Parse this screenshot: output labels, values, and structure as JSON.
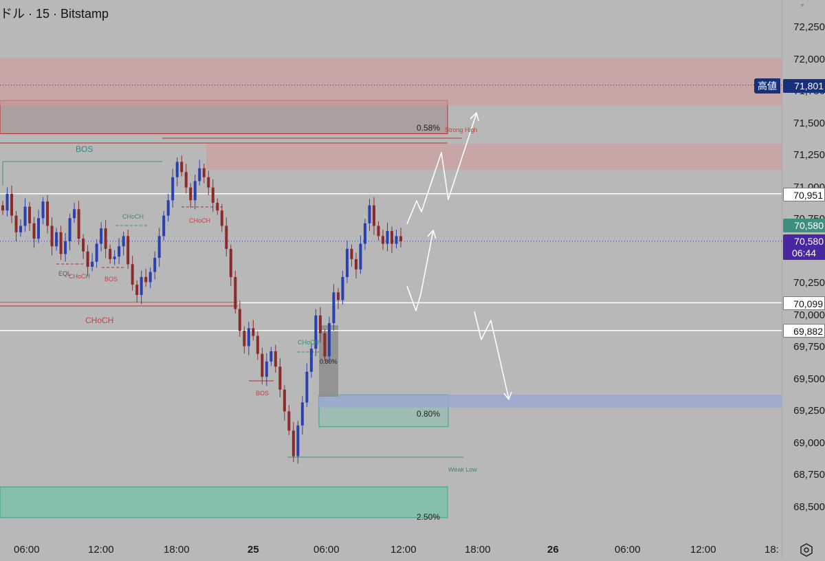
{
  "header": {
    "title": "ドル · 15 · Bitstamp"
  },
  "price_axis": {
    "ticks": [
      "72,250",
      "72,000",
      "71,750",
      "71,500",
      "71,250",
      "71,000",
      "70,750",
      "70,250",
      "70,000",
      "69,750",
      "69,500",
      "69,250",
      "69,000",
      "68,750",
      "68,500"
    ],
    "tick_values": [
      72250,
      72000,
      71750,
      71500,
      71250,
      71000,
      70750,
      70250,
      70000,
      69750,
      69500,
      69250,
      69000,
      68750,
      68500
    ]
  },
  "time_axis": {
    "ticks": [
      "06:00",
      "12:00",
      "18:00",
      "25",
      "06:00",
      "12:00",
      "18:00",
      "26",
      "06:00",
      "12:00",
      "18:"
    ],
    "bold": [
      false,
      false,
      false,
      true,
      false,
      false,
      false,
      true,
      false,
      false,
      false
    ]
  },
  "price_tags": {
    "high_label": "高値",
    "high_value": "71,801",
    "level_1": "70,951",
    "current_green": "70,580",
    "current_purple": "70,580",
    "countdown": "06:44",
    "level_2": "70,099",
    "level_3": "69,882"
  },
  "zones": {
    "top_pct": "0.58%",
    "mid_pct": "0.80%",
    "bottom_pct": "2.50%",
    "gray_pct": "0.80%"
  },
  "annotations": {
    "bos_top": "BOS",
    "choch_big": "CHoCH",
    "choch_1": "CHoCH",
    "choch_2": "CHoCH",
    "choch_3": "CHoCH",
    "choch_4": "CHoCH",
    "bos_1": "BOS",
    "bos_2": "BOS",
    "eql": "EQL",
    "strong_high": "Strong High",
    "weak_low": "Weak Low"
  },
  "colors": {
    "background": "#b8b8b8",
    "bull_candle": "#2a3fb0",
    "bear_candle": "#8a2a2a",
    "supply_zone": "#d49a9a",
    "demand_zone": "#6fc2a6",
    "blue_zone": "#9aa8d0",
    "accent_green": "#3e8f7f",
    "accent_purple": "#4a27a0"
  },
  "chart_data": {
    "type": "candlestick",
    "symbol": "ドル",
    "interval": "15",
    "exchange": "Bitstamp",
    "ylim": [
      68300,
      72400
    ],
    "y_ticks": [
      72250,
      72000,
      71750,
      71500,
      71250,
      71000,
      70750,
      70250,
      70000,
      69750,
      69500,
      69250,
      69000,
      68750,
      68500
    ],
    "x_ticks": [
      "06:00",
      "12:00",
      "18:00",
      "25",
      "06:00",
      "12:00",
      "18:00",
      "26",
      "06:00",
      "12:00",
      "18:"
    ],
    "horizontal_levels": [
      71801,
      70951,
      70580,
      70099,
      69882
    ],
    "current_price": 70580,
    "high": 71801,
    "zones": [
      {
        "label": "0.58%",
        "kind": "supply",
        "from": 71420,
        "to": 71680
      },
      {
        "label": "",
        "kind": "supply",
        "from": 71640,
        "to": 72010
      },
      {
        "label": "",
        "kind": "supply",
        "from": 71140,
        "to": 71340
      },
      {
        "label": "0.80%",
        "kind": "demand",
        "from": 69130,
        "to": 69380
      },
      {
        "label": "",
        "kind": "blue",
        "from": 69280,
        "to": 69380
      },
      {
        "label": "2.50%",
        "kind": "demand",
        "from": 68420,
        "to": 68660
      }
    ],
    "closes": [
      70820,
      70950,
      70780,
      70650,
      70700,
      70850,
      70720,
      70600,
      70760,
      70890,
      70700,
      70540,
      70650,
      70480,
      70580,
      70760,
      70830,
      70600,
      70500,
      70380,
      70420,
      70560,
      70680,
      70520,
      70440,
      70460,
      70540,
      70620,
      70400,
      70240,
      70160,
      70300,
      70260,
      70340,
      70450,
      70620,
      70780,
      70900,
      71080,
      71200,
      71120,
      71000,
      70900,
      71050,
      71150,
      71080,
      71000,
      70880,
      70820,
      70700,
      70520,
      70300,
      70050,
      69880,
      69760,
      69900,
      69840,
      69700,
      69520,
      69640,
      69720,
      69600,
      69420,
      69250,
      69100,
      68900,
      69140,
      69320,
      69560,
      69740,
      70000,
      69860,
      69680,
      69940,
      70180,
      70120,
      70300,
      70520,
      70440,
      70360,
      70560,
      70720,
      70860,
      70700,
      70620,
      70560,
      70660,
      70560,
      70620,
      70580
    ],
    "xlabel": "",
    "ylabel": ""
  }
}
